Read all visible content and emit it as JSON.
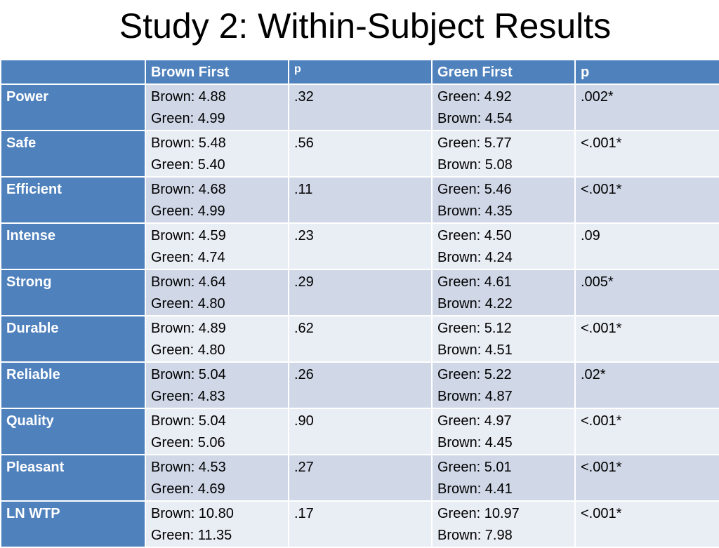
{
  "title": "Study 2: Within-Subject Results",
  "table": {
    "headers": [
      "",
      "Brown First",
      "p",
      "Green First",
      "p"
    ],
    "rows": [
      {
        "label": "Power",
        "brown_first": [
          "Brown: 4.88",
          "Green: 4.99"
        ],
        "p1": ".32",
        "green_first": [
          "Green: 4.92",
          "Brown: 4.54"
        ],
        "p2": ".002*"
      },
      {
        "label": "Safe",
        "brown_first": [
          "Brown: 5.48",
          "Green: 5.40"
        ],
        "p1": ".56",
        "green_first": [
          "Green: 5.77",
          "Brown: 5.08"
        ],
        "p2": "<.001*"
      },
      {
        "label": "Efficient",
        "brown_first": [
          "Brown: 4.68",
          "Green: 4.99"
        ],
        "p1": ".11",
        "green_first": [
          "Green: 5.46",
          "Brown: 4.35"
        ],
        "p2": "<.001*"
      },
      {
        "label": "Intense",
        "brown_first": [
          "Brown: 4.59",
          "Green: 4.74"
        ],
        "p1": ".23",
        "green_first": [
          "Green: 4.50",
          "Brown: 4.24"
        ],
        "p2": ".09"
      },
      {
        "label": "Strong",
        "brown_first": [
          "Brown: 4.64",
          "Green: 4.80"
        ],
        "p1": ".29",
        "green_first": [
          "Green: 4.61",
          "Brown: 4.22"
        ],
        "p2": ".005*"
      },
      {
        "label": "Durable",
        "brown_first": [
          "Brown: 4.89",
          "Green: 4.80"
        ],
        "p1": ".62",
        "green_first": [
          "Green: 5.12",
          "Brown: 4.51"
        ],
        "p2": "<.001*"
      },
      {
        "label": "Reliable",
        "brown_first": [
          "Brown: 5.04",
          "Green: 4.83"
        ],
        "p1": ".26",
        "green_first": [
          "Green: 5.22",
          "Brown: 4.87"
        ],
        "p2": ".02*"
      },
      {
        "label": "Quality",
        "brown_first": [
          "Brown: 5.04",
          "Green: 5.06"
        ],
        "p1": ".90",
        "green_first": [
          "Green: 4.97",
          "Brown: 4.45"
        ],
        "p2": "<.001*"
      },
      {
        "label": "Pleasant",
        "brown_first": [
          "Brown: 4.53",
          "Green: 4.69"
        ],
        "p1": ".27",
        "green_first": [
          "Green: 5.01",
          "Brown: 4.41"
        ],
        "p2": "<.001*"
      },
      {
        "label": "LN WTP",
        "brown_first": [
          "Brown: 10.80",
          "Green: 11.35"
        ],
        "p1": ".17",
        "green_first": [
          "Green: 10.97",
          "Brown: 7.98"
        ],
        "p2": "<.001*"
      }
    ]
  },
  "colors": {
    "header_bg": "#4f81bd",
    "row_odd_bg": "#d0d8e8",
    "row_even_bg": "#e9edf4"
  }
}
